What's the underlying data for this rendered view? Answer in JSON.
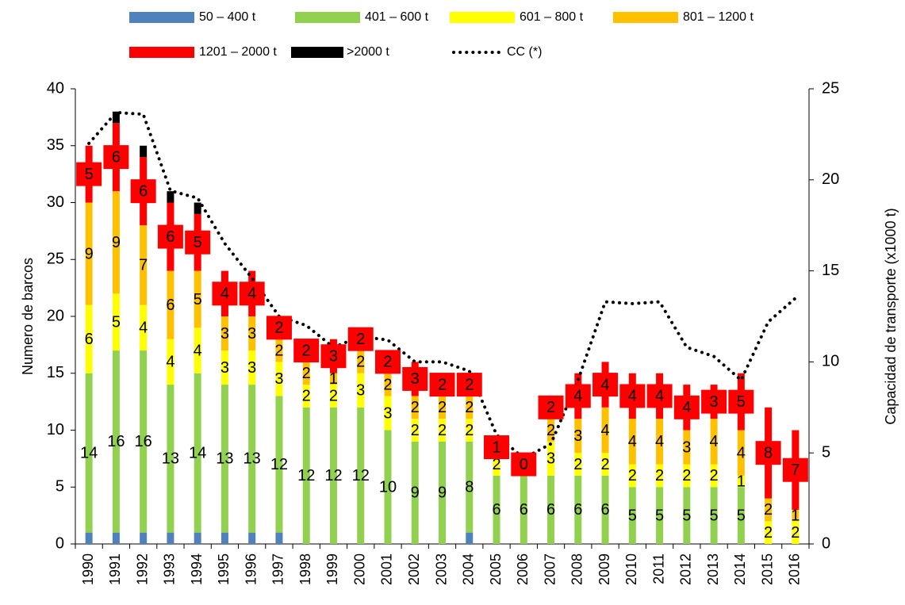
{
  "chart_data": {
    "type": "bar",
    "stacked": true,
    "categories": [
      "1990",
      "1991",
      "1992",
      "1993",
      "1994",
      "1995",
      "1996",
      "1997",
      "1998",
      "1999",
      "2000",
      "2001",
      "2002",
      "2003",
      "2004",
      "2005",
      "2006",
      "2007",
      "2008",
      "2009",
      "2010",
      "2011",
      "2012",
      "2013",
      "2014",
      "2015",
      "2016"
    ],
    "ylabel": "Numero de barcos",
    "y2label": "Capacidad de transporte  (x1000 t)",
    "ylim": [
      0,
      40
    ],
    "yticks": [
      0,
      5,
      10,
      15,
      20,
      25,
      30,
      35,
      40
    ],
    "y2lim": [
      0,
      25
    ],
    "y2ticks": [
      0,
      5,
      10,
      15,
      20,
      25
    ],
    "legend": "top",
    "series": [
      {
        "name": "50 – 400 t",
        "color": "#4f81bd",
        "values": [
          1,
          1,
          1,
          1,
          1,
          1,
          1,
          1,
          0,
          0,
          0,
          0,
          0,
          0,
          1,
          0,
          0,
          0,
          0,
          0,
          0,
          0,
          0,
          0,
          0,
          0,
          0
        ]
      },
      {
        "name": "401 – 600 t",
        "color": "#92d050",
        "label_style": "plain",
        "values": [
          14,
          16,
          16,
          13,
          14,
          13,
          13,
          12,
          12,
          12,
          12,
          10,
          9,
          9,
          8,
          6,
          6,
          6,
          6,
          6,
          5,
          5,
          5,
          5,
          5,
          0,
          0
        ]
      },
      {
        "name": "601 – 800 t",
        "color": "#ffff00",
        "label_style": "plain",
        "values": [
          6,
          5,
          4,
          4,
          4,
          3,
          3,
          3,
          2,
          2,
          3,
          3,
          2,
          2,
          2,
          2,
          1,
          3,
          2,
          2,
          2,
          2,
          2,
          2,
          1,
          2,
          2
        ]
      },
      {
        "name": "801 – 1200 t",
        "color": "#ffc000",
        "label_style": "plain",
        "values": [
          9,
          9,
          7,
          6,
          5,
          3,
          3,
          2,
          2,
          1,
          2,
          2,
          2,
          2,
          2,
          0,
          0,
          2,
          3,
          4,
          4,
          4,
          3,
          4,
          4,
          2,
          1
        ]
      },
      {
        "name": "1201 – 2000 t",
        "color": "#ff0000",
        "label_style": "box",
        "values": [
          5,
          6,
          6,
          6,
          5,
          4,
          4,
          2,
          2,
          3,
          2,
          2,
          3,
          2,
          2,
          1,
          0,
          2,
          4,
          4,
          4,
          4,
          4,
          3,
          5,
          8,
          7
        ]
      },
      {
        "name": ">2000 t",
        "color": "#000000",
        "values": [
          0,
          1,
          1,
          1,
          1,
          0,
          0,
          0,
          0,
          0,
          0,
          0,
          0,
          0,
          0,
          0,
          0,
          0,
          0,
          0,
          0,
          0,
          0,
          0,
          0,
          0,
          0
        ]
      },
      {
        "name": "CC (*)",
        "type": "line",
        "style": "dotted",
        "axis": "y2",
        "color": "#000000",
        "values": [
          22,
          23.7,
          23.6,
          19.4,
          19,
          16.5,
          14.6,
          12.5,
          12,
          10.8,
          11.4,
          11.2,
          10,
          10,
          9.5,
          6,
          4.7,
          5.5,
          9,
          13.3,
          13.2,
          13.3,
          10.8,
          10.3,
          9,
          12.2,
          13.5
        ]
      }
    ]
  }
}
